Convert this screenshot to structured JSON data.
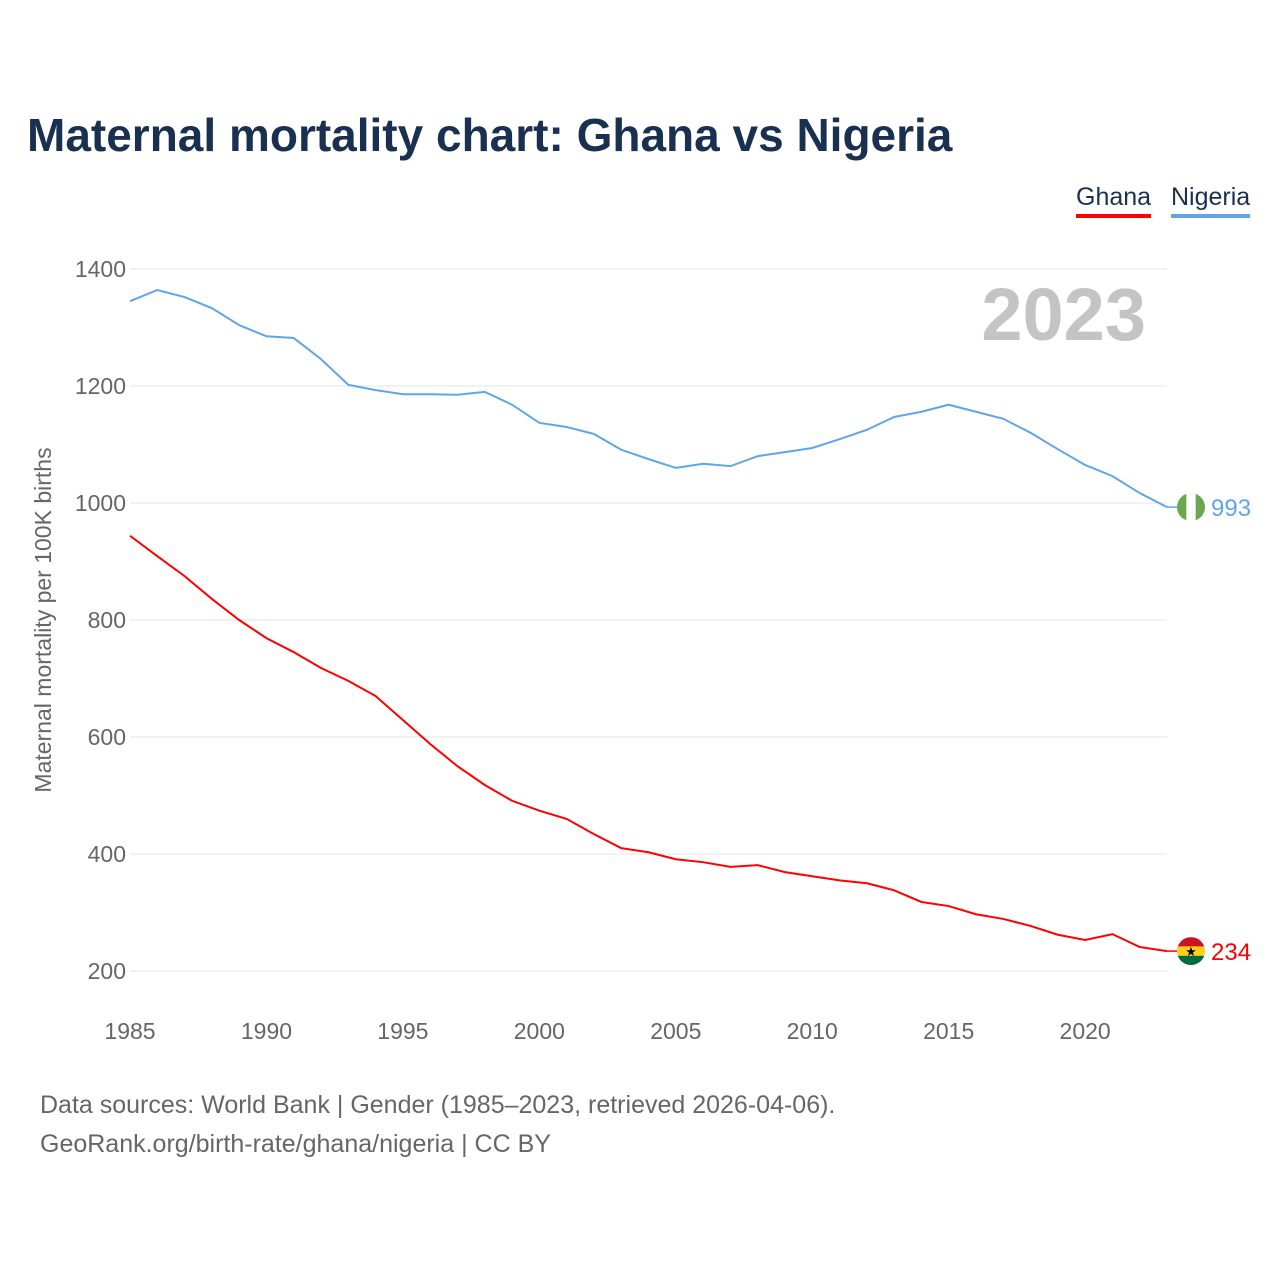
{
  "chart_data": {
    "type": "line",
    "title": "Maternal mortality chart: Ghana vs Nigeria",
    "xlabel": "",
    "ylabel": "Maternal mortality per 100K births",
    "xlim": [
      1985,
      2023
    ],
    "ylim": [
      200,
      1400
    ],
    "yticks": [
      "200",
      "400",
      "600",
      "800",
      "1000",
      "1200",
      "1400"
    ],
    "xticks": [
      "1985",
      "1990",
      "1995",
      "2000",
      "2005",
      "2010",
      "2015",
      "2020"
    ],
    "grid": true,
    "legend_position": "top-right",
    "year_label": "2023",
    "x": [
      1985,
      1986,
      1987,
      1988,
      1989,
      1990,
      1991,
      1992,
      1993,
      1994,
      1995,
      1996,
      1997,
      1998,
      1999,
      2000,
      2001,
      2002,
      2003,
      2004,
      2005,
      2006,
      2007,
      2008,
      2009,
      2010,
      2011,
      2012,
      2013,
      2014,
      2015,
      2016,
      2017,
      2018,
      2019,
      2020,
      2021,
      2022,
      2023
    ],
    "series": [
      {
        "name": "Ghana",
        "color": "#ff0000",
        "end_label": "234",
        "values": [
          944,
          909,
          875,
          836,
          800,
          769,
          745,
          718,
          696,
          670,
          629,
          588,
          550,
          518,
          491,
          474,
          460,
          434,
          410,
          403,
          391,
          386,
          378,
          381,
          369,
          362,
          355,
          350,
          338,
          318,
          311,
          297,
          289,
          277,
          262,
          253,
          263,
          241,
          234
        ]
      },
      {
        "name": "Nigeria",
        "color": "#60a5ea",
        "end_label": "993",
        "values": [
          1345,
          1364,
          1352,
          1333,
          1304,
          1285,
          1282,
          1246,
          1202,
          1193,
          1186,
          1186,
          1185,
          1190,
          1168,
          1137,
          1130,
          1118,
          1091,
          1075,
          1060,
          1067,
          1063,
          1080,
          1087,
          1094,
          1109,
          1125,
          1147,
          1156,
          1168,
          1156,
          1144,
          1120,
          1092,
          1065,
          1046,
          1017,
          993
        ]
      }
    ]
  },
  "footer": {
    "line1": "Data sources: World Bank | Gender (1985–2023, retrieved 2026-04-06).",
    "line2": "GeoRank.org/birth-rate/ghana/nigeria | CC BY"
  }
}
